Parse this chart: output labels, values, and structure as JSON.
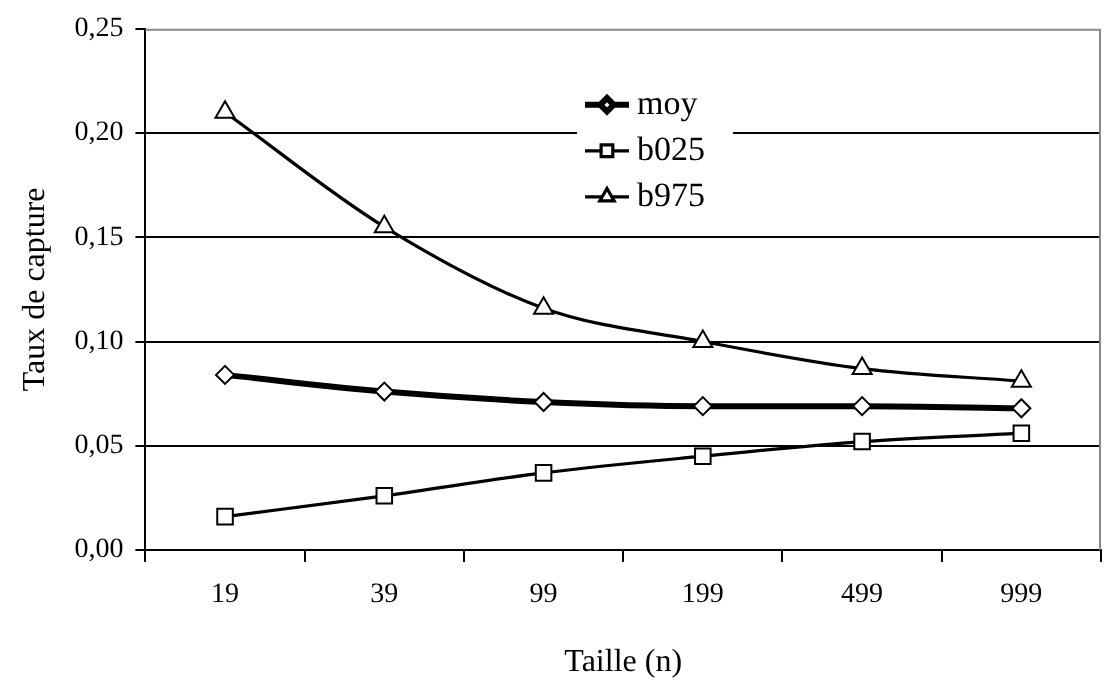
{
  "chart_data": {
    "type": "line",
    "xlabel": "Taille (n)",
    "ylabel": "Taux de capture",
    "categories": [
      "19",
      "39",
      "99",
      "199",
      "499",
      "999"
    ],
    "series": [
      {
        "name": "moy",
        "color": "#000000",
        "marker": "diamond",
        "values": [
          0.084,
          0.076,
          0.071,
          0.069,
          0.069,
          0.068
        ]
      },
      {
        "name": "b025",
        "color": "#000000",
        "marker": "square",
        "values": [
          0.016,
          0.026,
          0.037,
          0.045,
          0.052,
          0.056
        ]
      },
      {
        "name": "b975",
        "color": "#000000",
        "marker": "triangle",
        "values": [
          0.21,
          0.155,
          0.116,
          0.1,
          0.087,
          0.081
        ]
      }
    ],
    "ylim": [
      0,
      0.25
    ],
    "yticks": [
      {
        "value": 0,
        "label": "0,00"
      },
      {
        "value": 0.05,
        "label": "0,05"
      },
      {
        "value": 0.1,
        "label": "0,10"
      },
      {
        "value": 0.15,
        "label": "0,15"
      },
      {
        "value": 0.2,
        "label": "0,20"
      },
      {
        "value": 0.25,
        "label": "0,25"
      }
    ],
    "grid": "y",
    "legend": "top",
    "line_style": "solid"
  }
}
